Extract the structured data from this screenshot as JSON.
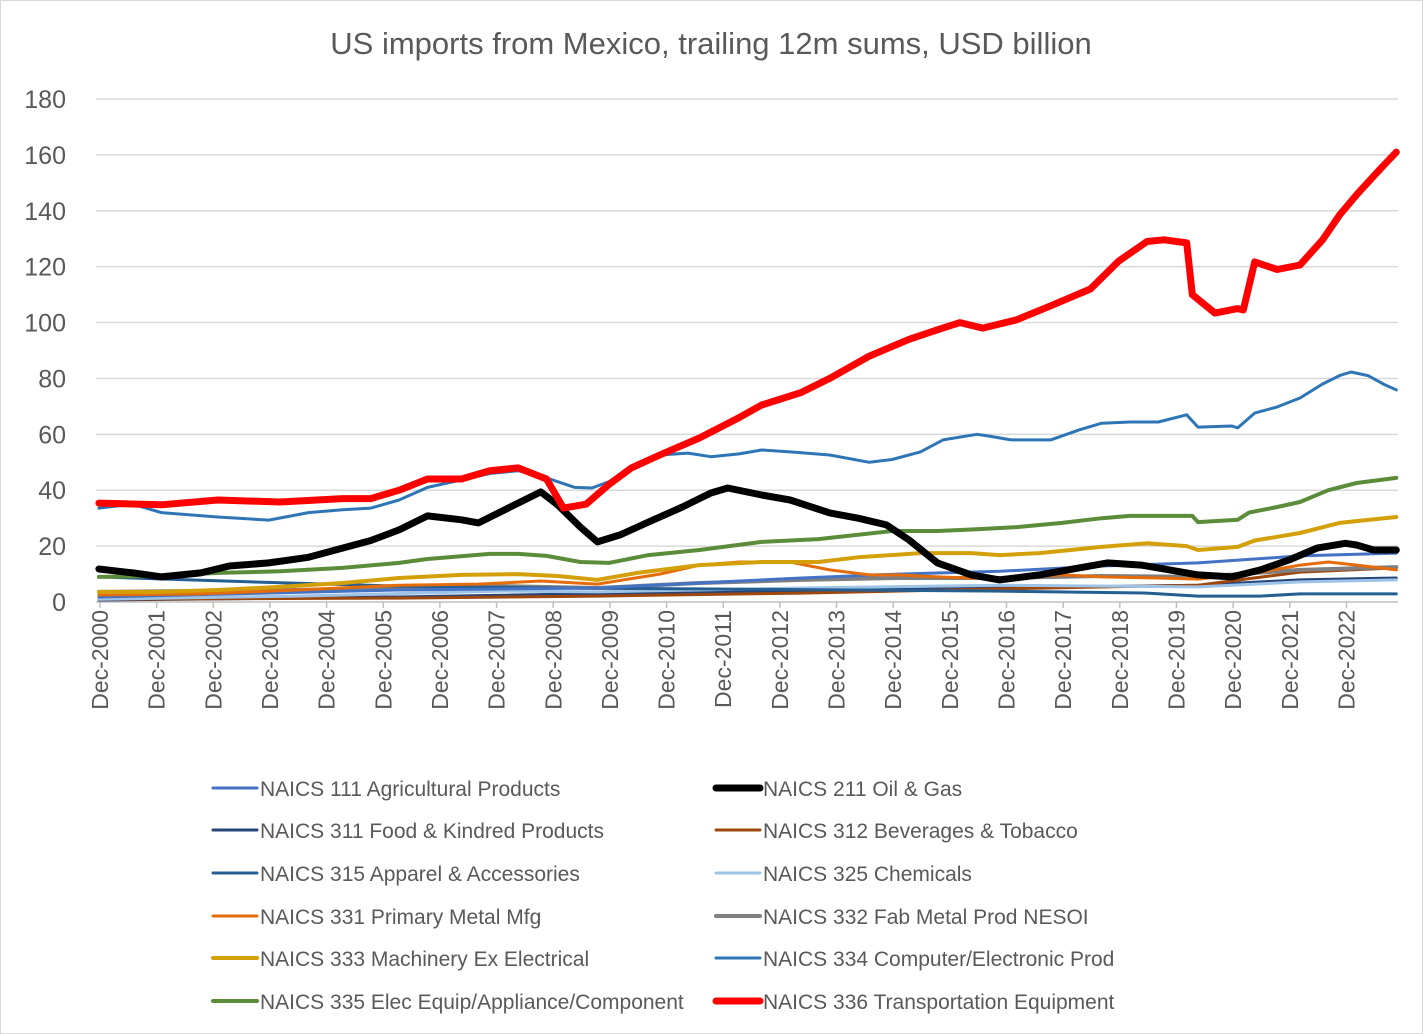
{
  "chart_data": {
    "type": "line",
    "title": "US imports from Mexico, trailing 12m sums, USD billion",
    "xlabel": "",
    "ylabel": "",
    "ylim": [
      0,
      180
    ],
    "yticks": [
      0,
      20,
      40,
      60,
      80,
      100,
      120,
      140,
      160,
      180
    ],
    "xlim": [
      2000.92,
      2023.83
    ],
    "xtick_labels": [
      "Dec-2000",
      "Dec-2001",
      "Dec-2002",
      "Dec-2003",
      "Dec-2004",
      "Dec-2005",
      "Dec-2006",
      "Dec-2007",
      "Dec-2008",
      "Dec-2009",
      "Dec-2010",
      "Dec-2011",
      "Dec-2012",
      "Dec-2013",
      "Dec-2014",
      "Dec-2015",
      "Dec-2016",
      "Dec-2017",
      "Dec-2018",
      "Dec-2019",
      "Dec-2020",
      "Dec-2021",
      "Dec-2022"
    ],
    "xtick_values": [
      2000.92,
      2001.92,
      2002.92,
      2003.92,
      2004.92,
      2005.92,
      2006.92,
      2007.92,
      2008.92,
      2009.92,
      2010.92,
      2011.92,
      2012.92,
      2013.92,
      2014.92,
      2015.92,
      2016.92,
      2017.92,
      2018.92,
      2019.92,
      2020.92,
      2021.92,
      2022.92
    ],
    "grid": true,
    "legend_placement": "bottom",
    "series": [
      {
        "name": "NAICS 111 Agricultural Products",
        "color": "#4472c4",
        "width": 3,
        "x": [
          2000.9,
          2006.2,
          2009.7,
          2011.5,
          2013.3,
          2015.0,
          2016.8,
          2018.6,
          2020.3,
          2022.1,
          2023.8
        ],
        "y": [
          1.8,
          4.3,
          5.0,
          6.8,
          8.6,
          10.0,
          11.0,
          12.9,
          14.0,
          16.5,
          17.5
        ]
      },
      {
        "name": "NAICS 211 Oil & Gas",
        "color": "#000000",
        "width": 7,
        "x": [
          2000.9,
          2001.5,
          2002.0,
          2002.7,
          2003.2,
          2003.9,
          2004.6,
          2005.2,
          2005.7,
          2006.2,
          2006.7,
          2007.3,
          2007.6,
          2008.2,
          2008.7,
          2009.0,
          2009.4,
          2009.7,
          2010.1,
          2010.6,
          2011.2,
          2011.7,
          2012.0,
          2012.6,
          2013.1,
          2013.8,
          2014.3,
          2014.8,
          2015.2,
          2015.7,
          2016.3,
          2016.8,
          2017.5,
          2018.2,
          2018.7,
          2019.3,
          2019.8,
          2020.3,
          2020.9,
          2021.4,
          2021.9,
          2022.4,
          2022.9,
          2023.1,
          2023.4,
          2023.8
        ],
        "y": [
          11.8,
          10.4,
          9.0,
          10.4,
          12.9,
          14.0,
          16.0,
          19.3,
          22.0,
          25.8,
          30.8,
          29.4,
          28.3,
          34.4,
          39.4,
          34.7,
          26.8,
          21.5,
          24.0,
          28.6,
          34.0,
          39.0,
          40.8,
          38.3,
          36.5,
          31.9,
          30.0,
          27.6,
          22.2,
          14.0,
          9.7,
          7.9,
          9.7,
          12.2,
          14.0,
          13.2,
          11.5,
          9.7,
          9.0,
          11.5,
          15.0,
          19.3,
          21.0,
          20.4,
          18.6,
          18.6
        ]
      },
      {
        "name": "NAICS 311 Food & Kindred Products",
        "color": "#264478",
        "width": 3,
        "x": [
          2000.9,
          2006.2,
          2011.5,
          2016.8,
          2020.3,
          2022.1,
          2023.8
        ],
        "y": [
          0.7,
          1.8,
          3.6,
          5.0,
          6.0,
          7.9,
          8.6
        ]
      },
      {
        "name": "NAICS 312 Beverages & Tobacco",
        "color": "#9e480e",
        "width": 3,
        "x": [
          2000.9,
          2006.2,
          2009.7,
          2013.3,
          2016.8,
          2019.4,
          2020.3,
          2022.1,
          2023.8
        ],
        "y": [
          1.0,
          1.4,
          2.1,
          3.2,
          4.7,
          5.7,
          6.0,
          10.7,
          12.2
        ]
      },
      {
        "name": "NAICS 315 Apparel & Accessories",
        "color": "#255e91",
        "width": 3,
        "x": [
          2000.9,
          2003.6,
          2006.2,
          2008.9,
          2011.5,
          2014.1,
          2016.8,
          2019.4,
          2020.3,
          2021.4,
          2022.1,
          2023.8
        ],
        "y": [
          9.0,
          7.2,
          5.7,
          5.0,
          4.7,
          4.3,
          3.9,
          3.2,
          2.1,
          2.1,
          2.9,
          2.9
        ]
      },
      {
        "name": "NAICS 325 Chemicals",
        "color": "#9dc3e6",
        "width": 3,
        "x": [
          2000.9,
          2004.4,
          2008.0,
          2009.7,
          2013.3,
          2016.8,
          2020.3,
          2022.1,
          2023.8
        ],
        "y": [
          1.0,
          2.1,
          3.9,
          3.6,
          5.0,
          6.0,
          5.4,
          7.2,
          7.9
        ]
      },
      {
        "name": "NAICS 331 Primary Metal Mfg",
        "color": "#e46c0a",
        "width": 3,
        "x": [
          2000.9,
          2002.7,
          2004.4,
          2006.2,
          2007.6,
          2008.7,
          2009.7,
          2010.8,
          2011.5,
          2012.2,
          2013.1,
          2013.8,
          2014.5,
          2015.0,
          2015.7,
          2016.8,
          2017.9,
          2018.6,
          2019.6,
          2020.3,
          2021.4,
          2022.1,
          2022.6,
          2023.1,
          2023.8
        ],
        "y": [
          2.5,
          2.9,
          4.3,
          6.0,
          6.4,
          7.5,
          6.4,
          10.0,
          13.2,
          14.3,
          14.3,
          11.5,
          9.7,
          9.7,
          9.0,
          8.2,
          9.7,
          9.0,
          8.6,
          8.2,
          10.7,
          13.2,
          14.3,
          13.2,
          11.5
        ]
      },
      {
        "name": "NAICS 332 Fab Metal Prod NESOI",
        "color": "#7f7f7f",
        "width": 4,
        "x": [
          2000.9,
          2004.4,
          2008.0,
          2009.7,
          2011.5,
          2013.3,
          2015.0,
          2016.8,
          2018.6,
          2020.3,
          2022.1,
          2023.8
        ],
        "y": [
          3.6,
          4.3,
          5.7,
          5.0,
          6.8,
          7.9,
          8.6,
          8.6,
          9.3,
          9.0,
          11.5,
          12.5
        ]
      },
      {
        "name": "NAICS 333 Machinery Ex Electrical",
        "color": "#d4a00a",
        "width": 4,
        "x": [
          2000.9,
          2002.0,
          2003.0,
          2004.1,
          2005.2,
          2006.2,
          2007.3,
          2008.3,
          2009.0,
          2009.7,
          2010.4,
          2011.5,
          2012.6,
          2013.6,
          2014.3,
          2015.4,
          2016.3,
          2016.8,
          2017.5,
          2018.6,
          2019.4,
          2020.1,
          2020.3,
          2021.0,
          2021.3,
          2022.1,
          2022.8,
          2023.8
        ],
        "y": [
          3.6,
          3.6,
          4.3,
          5.4,
          6.8,
          8.6,
          9.7,
          10.0,
          9.3,
          7.9,
          10.4,
          13.2,
          14.3,
          14.3,
          16.0,
          17.5,
          17.5,
          16.8,
          17.5,
          19.7,
          21.0,
          20.0,
          18.6,
          19.7,
          22.0,
          24.7,
          28.3,
          30.4
        ]
      },
      {
        "name": "NAICS 334 Computer/Electronic Prod",
        "color": "#2e75b6",
        "width": 3,
        "x": [
          2000.9,
          2001.5,
          2002.0,
          2003.0,
          2003.9,
          2004.6,
          2005.2,
          2005.7,
          2006.2,
          2006.7,
          2007.3,
          2007.8,
          2008.3,
          2008.8,
          2009.3,
          2009.6,
          2009.9,
          2010.4,
          2010.8,
          2011.3,
          2011.7,
          2012.2,
          2012.6,
          2013.1,
          2013.8,
          2014.5,
          2014.9,
          2015.4,
          2015.8,
          2016.4,
          2016.6,
          2017.0,
          2017.7,
          2018.2,
          2018.6,
          2019.1,
          2019.6,
          2020.1,
          2020.3,
          2020.9,
          2021.0,
          2021.3,
          2021.7,
          2022.1,
          2022.5,
          2022.8,
          2023.0,
          2023.3,
          2023.6,
          2023.8
        ],
        "y": [
          33.6,
          35.0,
          32.0,
          30.4,
          29.3,
          32.0,
          33.0,
          33.6,
          36.5,
          41.0,
          43.7,
          46.0,
          47.0,
          44.4,
          41.0,
          40.8,
          43.0,
          49.0,
          52.6,
          53.3,
          52.0,
          53.0,
          54.4,
          53.7,
          52.6,
          50.0,
          51.0,
          53.7,
          58.0,
          60.0,
          59.4,
          58.0,
          58.0,
          61.6,
          64.0,
          64.4,
          64.4,
          67.0,
          62.6,
          63.0,
          62.3,
          67.6,
          69.8,
          73.0,
          78.0,
          81.0,
          82.3,
          81.0,
          77.7,
          75.9
        ]
      },
      {
        "name": "NAICS 335 Elec Equip/Appliance/Component",
        "color": "#5b8c3a",
        "width": 4,
        "x": [
          2000.9,
          2002.0,
          2003.0,
          2004.1,
          2005.2,
          2006.2,
          2006.7,
          2007.8,
          2008.3,
          2008.8,
          2009.4,
          2009.9,
          2010.6,
          2011.5,
          2012.6,
          2013.6,
          2014.9,
          2015.7,
          2016.4,
          2017.1,
          2017.9,
          2018.6,
          2019.1,
          2020.2,
          2020.3,
          2021.0,
          2021.2,
          2021.7,
          2022.1,
          2022.6,
          2023.1,
          2023.8
        ],
        "y": [
          9.0,
          9.3,
          10.4,
          11.0,
          12.2,
          14.0,
          15.4,
          17.2,
          17.2,
          16.5,
          14.3,
          14.0,
          16.8,
          18.6,
          21.5,
          22.5,
          25.4,
          25.4,
          26.0,
          26.8,
          28.3,
          30.0,
          30.8,
          30.8,
          28.6,
          29.4,
          32.0,
          34.0,
          35.8,
          40.0,
          42.6,
          44.4
        ]
      },
      {
        "name": "NAICS 336 Transportation Equipment",
        "color": "#ff0000",
        "width": 7,
        "x": [
          2000.9,
          2002.0,
          2003.0,
          2004.1,
          2005.2,
          2005.7,
          2006.2,
          2006.7,
          2007.3,
          2007.8,
          2008.3,
          2008.8,
          2009.1,
          2009.5,
          2009.9,
          2010.3,
          2010.8,
          2011.5,
          2012.2,
          2012.6,
          2013.3,
          2013.8,
          2014.5,
          2015.2,
          2015.7,
          2016.1,
          2016.5,
          2017.1,
          2017.7,
          2018.4,
          2018.9,
          2019.4,
          2019.7,
          2020.1,
          2020.2,
          2020.6,
          2021.0,
          2021.1,
          2021.3,
          2021.7,
          2022.1,
          2022.5,
          2022.8,
          2023.1,
          2023.5,
          2023.8
        ],
        "y": [
          35.4,
          34.8,
          36.5,
          35.8,
          37.0,
          37.0,
          40.0,
          44.0,
          44.0,
          47.0,
          48.0,
          44.0,
          33.6,
          35.0,
          42.0,
          48.0,
          52.6,
          58.7,
          66.0,
          70.5,
          75.0,
          80.0,
          88.0,
          94.0,
          97.4,
          100.0,
          98.0,
          101.0,
          106.0,
          112.0,
          122.0,
          129.0,
          129.6,
          128.5,
          110.0,
          103.4,
          105.0,
          104.5,
          121.7,
          119.0,
          120.6,
          129.6,
          138.5,
          145.7,
          154.6,
          161.0
        ]
      }
    ]
  }
}
